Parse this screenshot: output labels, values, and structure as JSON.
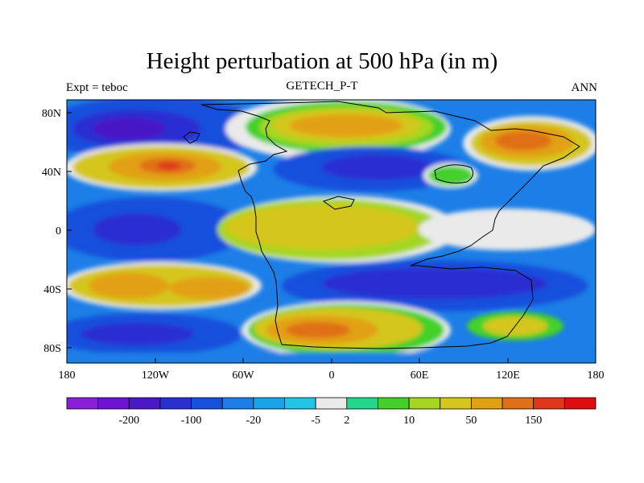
{
  "title": "Height perturbation at 500 hPa (in m)",
  "subtitle_left": "Expt = teboc",
  "subtitle_center": "GETECH_P-T",
  "subtitle_right": "ANN",
  "axes": {
    "x_ticks": [
      "180",
      "120W",
      "60W",
      "0",
      "60E",
      "120E",
      "180"
    ],
    "y_ticks": [
      "80N",
      "40N",
      "0",
      "40S",
      "80S"
    ]
  },
  "colorbar": {
    "colors": [
      "#8a1fd9",
      "#6e12d4",
      "#4a18c7",
      "#2a2fd0",
      "#1650dc",
      "#1c7ee6",
      "#19a4ea",
      "#22c4e6",
      "#eaeaea",
      "#22d68a",
      "#44d02a",
      "#a6d623",
      "#d4c61a",
      "#e2a013",
      "#e07017",
      "#e0361a",
      "#e00d10"
    ],
    "labels": [
      "-200",
      "-100",
      "-20",
      "-5",
      "2",
      "10",
      "50",
      "150"
    ],
    "label_after_box": [
      1,
      3,
      5,
      7,
      8,
      10,
      12,
      14
    ]
  },
  "colors": {
    "strong_negative": "#4a18c7",
    "negative": "#1650dc",
    "neutral": "#eaeaea",
    "positive": "#d4c61a",
    "strong_positive": "#e07017"
  }
}
